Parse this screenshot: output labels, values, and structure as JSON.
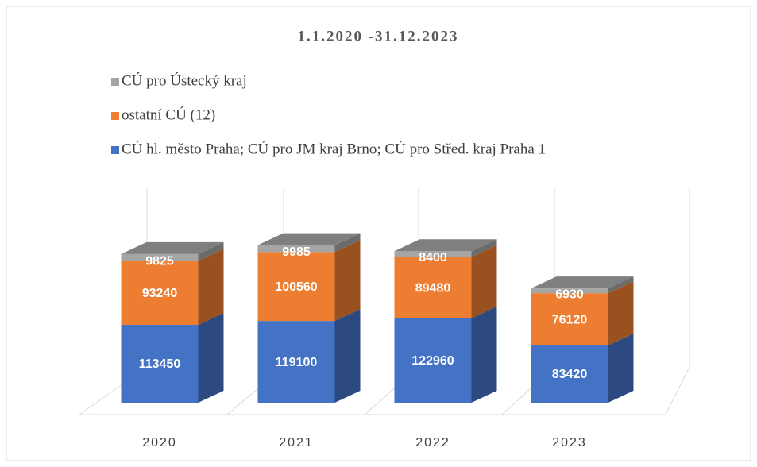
{
  "chart_data": {
    "type": "bar3d_stacked",
    "title": "1.1.2020 -31.12.2023",
    "categories": [
      "2020",
      "2021",
      "2022",
      "2023"
    ],
    "series": [
      {
        "name": "CÚ hl. město Praha; CÚ pro JM kraj Brno; CÚ pro Střed. kraj Praha 1",
        "color": "#4472c4",
        "values": [
          113450,
          119100,
          122960,
          83420
        ]
      },
      {
        "name": "ostatní CÚ (12)",
        "color": "#ed7d31",
        "values": [
          93240,
          100560,
          89480,
          76120
        ]
      },
      {
        "name": "CÚ pro Ústecký kraj",
        "color": "#a5a5a5",
        "values": [
          9825,
          9985,
          8400,
          6930
        ]
      }
    ],
    "ylim": [
      0,
      250000
    ],
    "legend": "top-left"
  }
}
